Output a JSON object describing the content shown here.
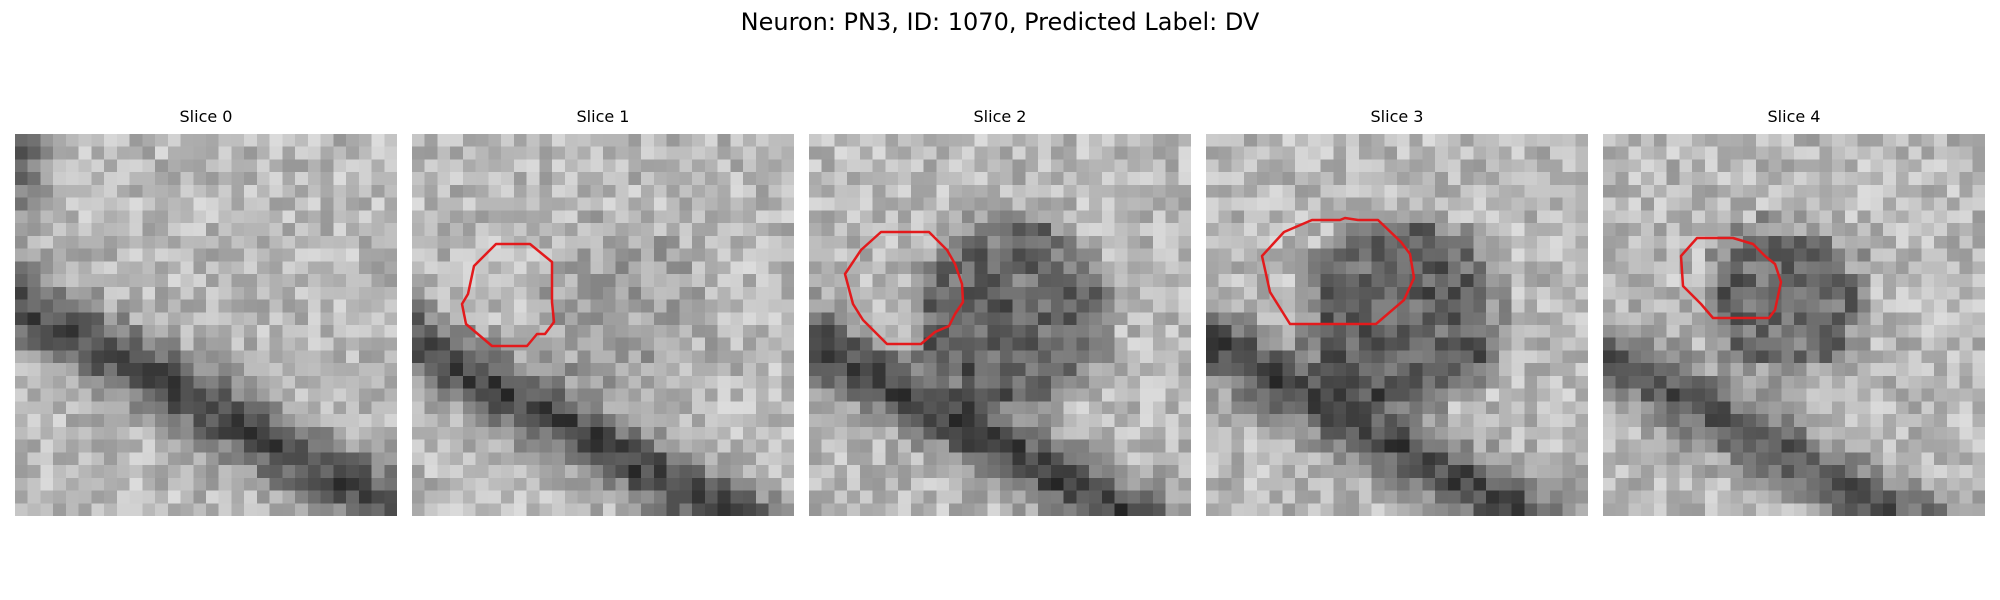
{
  "figure": {
    "title": "Neuron: PN3, ID: 1070, Predicted Label: DV"
  },
  "panels": [
    {
      "title": "Slice 0",
      "has_contour": false
    },
    {
      "title": "Slice 1",
      "has_contour": true
    },
    {
      "title": "Slice 2",
      "has_contour": true
    },
    {
      "title": "Slice 3",
      "has_contour": true
    },
    {
      "title": "Slice 4",
      "has_contour": true
    }
  ],
  "colors": {
    "contour": "#e31a1c",
    "background": "#ffffff"
  }
}
